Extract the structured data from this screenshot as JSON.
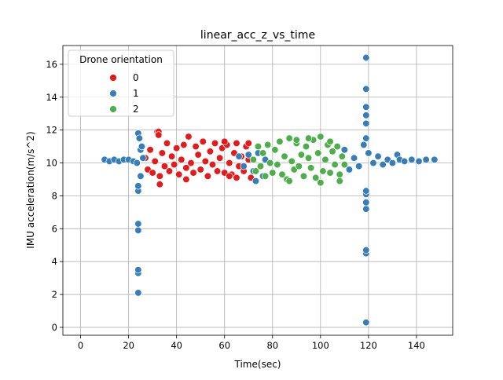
{
  "chart_data": {
    "type": "scatter",
    "title": "linear_acc_z_vs_time",
    "xlabel": "Time(sec)",
    "ylabel": "IMU acceleration(m/s^2)",
    "xlim": [
      -7.4,
      155.1
    ],
    "ylim": [
      -0.48,
      17.14
    ],
    "xticks": [
      0,
      20,
      40,
      60,
      80,
      100,
      120,
      140
    ],
    "yticks": [
      0,
      2,
      4,
      6,
      8,
      10,
      12,
      14,
      16
    ],
    "grid": true,
    "legend_title": "Drone orientation",
    "legend_position": "upper-left",
    "series": [
      {
        "name": "0",
        "color": "#e41a1c",
        "x": [
          27,
          28,
          29,
          30,
          31,
          32,
          33,
          34,
          35,
          36,
          37,
          38,
          39,
          40,
          41,
          42,
          43,
          44,
          45,
          46,
          47,
          48,
          49,
          50,
          51,
          52,
          53,
          54,
          55,
          56,
          57,
          58,
          59,
          60,
          61,
          62,
          63,
          64,
          65,
          66,
          67,
          68,
          69,
          70,
          71,
          32.5,
          32.5,
          33,
          45,
          44,
          60,
          62,
          70,
          65
        ],
        "values": [
          10.3,
          9.6,
          10.8,
          9.4,
          10.1,
          11.9,
          9.2,
          10.6,
          9.8,
          11.2,
          9.5,
          10.4,
          9.9,
          10.9,
          9.3,
          10.2,
          11.1,
          9.7,
          11.6,
          10.0,
          9.4,
          11.0,
          10.5,
          9.6,
          11.3,
          10.1,
          9.2,
          10.7,
          9.9,
          11.2,
          9.5,
          10.3,
          10.9,
          9.4,
          11.1,
          10.0,
          9.3,
          10.6,
          11.2,
          9.8,
          10.4,
          9.5,
          11.0,
          10.2,
          9.1,
          11.9,
          11.7,
          8.7,
          11.6,
          9.0,
          11.3,
          9.2,
          11.2,
          9.1
        ]
      },
      {
        "name": "1",
        "color": "#377eb8",
        "x": [
          10,
          12,
          14,
          16,
          18,
          20,
          22,
          23.5,
          24,
          24,
          24,
          24,
          24,
          24,
          24,
          24,
          24.5,
          25,
          25,
          25.5,
          26,
          66,
          68,
          70,
          72,
          73,
          74,
          76,
          77,
          110,
          112,
          114,
          116,
          118,
          119,
          119,
          119,
          119,
          119,
          119,
          119,
          119,
          119,
          119,
          119,
          119,
          119,
          120,
          122,
          124,
          126,
          128,
          130,
          132,
          133,
          135,
          138,
          141,
          144,
          147.5
        ],
        "values": [
          10.2,
          10.1,
          10.2,
          10.1,
          10.2,
          10.2,
          10.1,
          10.0,
          2.1,
          3.3,
          3.5,
          5.9,
          6.3,
          8.3,
          8.6,
          11.8,
          11.5,
          10.8,
          9.2,
          11.0,
          10.3,
          10.4,
          9.8,
          10.5,
          9.5,
          8.9,
          10.6,
          9.2,
          10.2,
          10.8,
          9.6,
          10.3,
          9.8,
          11.1,
          0.3,
          4.5,
          4.7,
          7.2,
          7.6,
          8.1,
          8.3,
          11.5,
          12.4,
          12.9,
          13.4,
          14.5,
          16.4,
          10.6,
          10.0,
          10.4,
          9.9,
          10.2,
          10.0,
          10.5,
          10.2,
          10.1,
          10.2,
          10.1,
          10.2,
          10.2
        ]
      },
      {
        "name": "2",
        "color": "#4daf4a",
        "x": [
          72,
          73,
          74,
          75,
          76,
          77,
          78,
          79,
          80,
          81,
          82,
          83,
          84,
          85,
          86,
          87,
          88,
          89,
          90,
          91,
          92,
          93,
          94,
          95,
          96,
          97,
          98,
          99,
          100,
          101,
          102,
          103,
          104,
          105,
          106,
          107,
          108,
          109,
          110,
          87,
          100,
          95,
          108,
          104,
          90
        ],
        "values": [
          10.2,
          9.5,
          11.0,
          9.8,
          10.6,
          9.2,
          11.1,
          10.0,
          9.4,
          10.8,
          9.9,
          11.3,
          9.3,
          10.4,
          9.0,
          11.5,
          10.1,
          9.6,
          11.2,
          9.8,
          10.5,
          9.2,
          11.0,
          10.3,
          9.7,
          11.4,
          9.1,
          10.6,
          11.6,
          9.5,
          10.2,
          11.1,
          9.4,
          10.7,
          9.9,
          11.0,
          9.3,
          10.4,
          9.9,
          8.9,
          8.8,
          11.5,
          8.9,
          11.3,
          11.4
        ]
      }
    ]
  }
}
